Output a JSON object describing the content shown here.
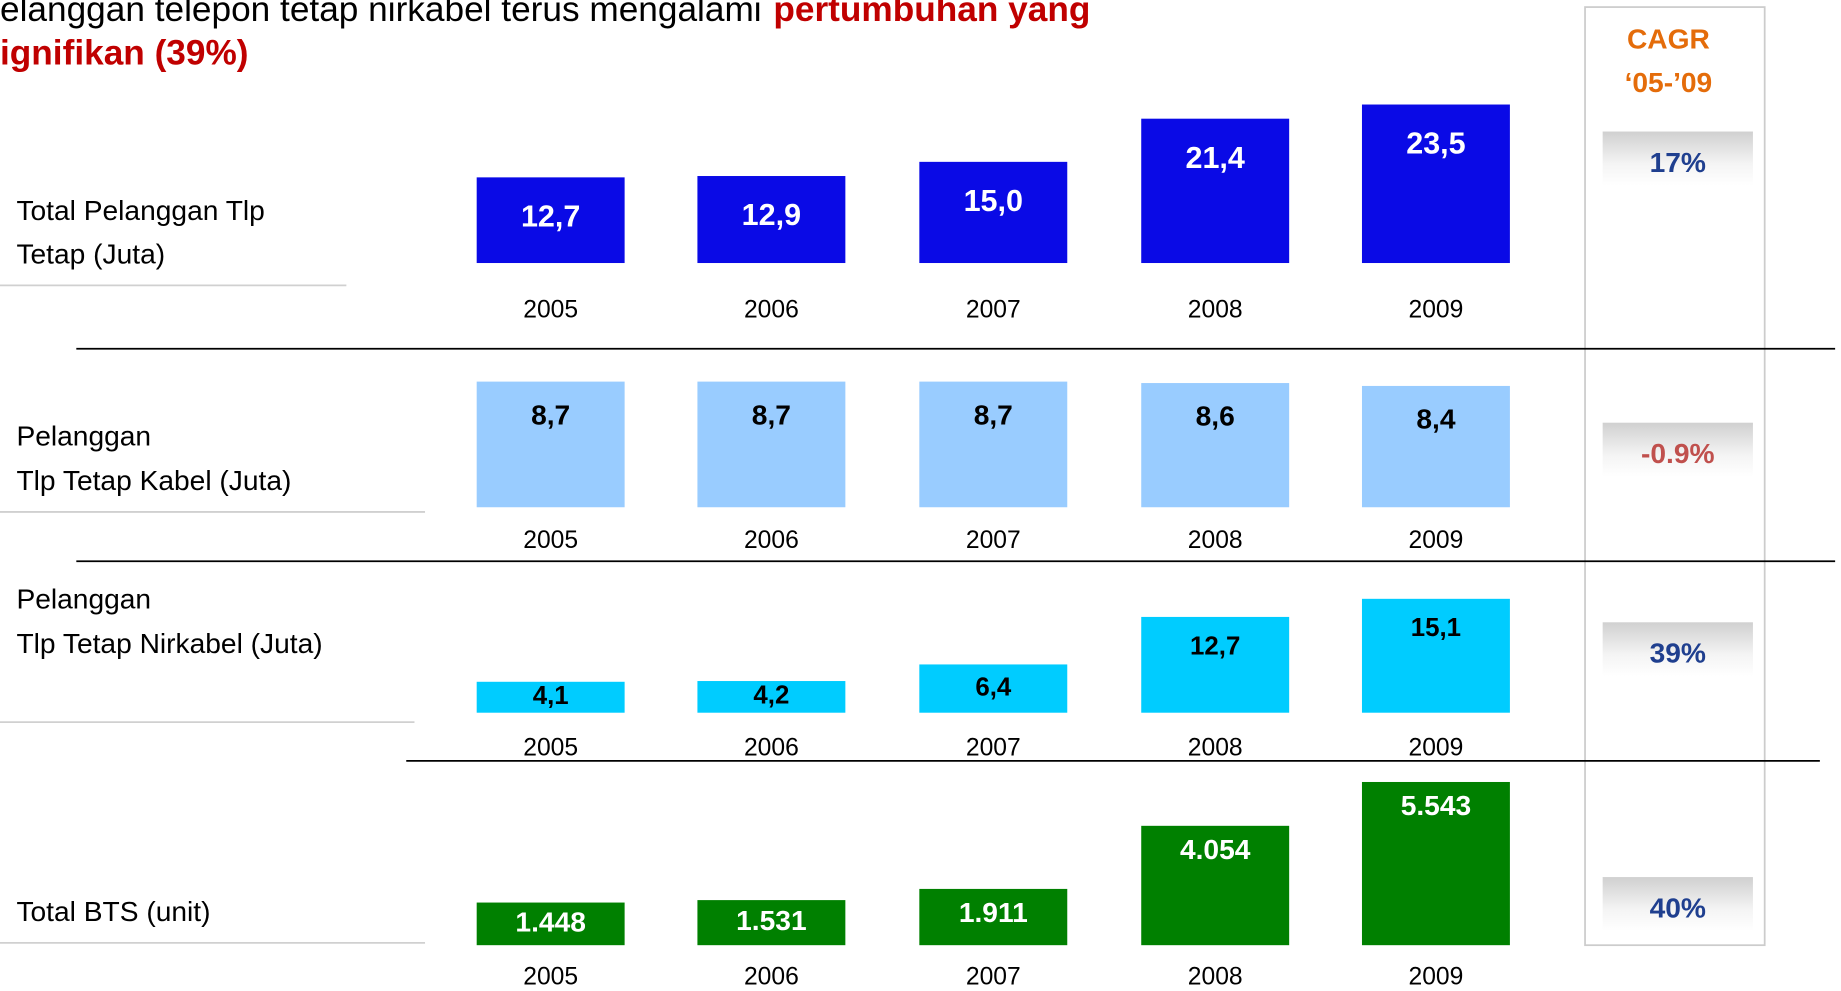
{
  "header": {
    "line1": "elanggan telepon tetap nirkabel terus mengalami",
    "line1_highlight": "pertumbuhan yang",
    "line2": "ignifikan (39%)"
  },
  "cagr_header": [
    "CAGR",
    "‘05-’09"
  ],
  "chart_data": [
    {
      "type": "bar",
      "title": [
        "Total Pelanggan Tlp",
        "Tetap (Juta)"
      ],
      "categories": [
        "2005",
        "2006",
        "2007",
        "2008",
        "2009"
      ],
      "values": [
        12.7,
        12.9,
        15.0,
        21.4,
        23.5
      ],
      "value_labels": [
        "12,7",
        "12,9",
        "15,0",
        "21,4",
        "23,5"
      ],
      "color": "#0a0ae6",
      "cagr": "17%",
      "cagr_color": "#1f3f8f"
    },
    {
      "type": "bar",
      "title": [
        "Pelanggan",
        "Tlp Tetap Kabel (Juta)"
      ],
      "categories": [
        "2005",
        "2006",
        "2007",
        "2008",
        "2009"
      ],
      "values": [
        8.7,
        8.7,
        8.7,
        8.6,
        8.4
      ],
      "value_labels": [
        "8,7",
        "8,7",
        "8,7",
        "8,6",
        "8,4"
      ],
      "color": "#99ccff",
      "cagr": "-0.9%",
      "cagr_color": "#c0504d"
    },
    {
      "type": "bar",
      "title": [
        "Pelanggan",
        "Tlp Tetap Nirkabel (Juta)"
      ],
      "categories": [
        "2005",
        "2006",
        "2007",
        "2008",
        "2009"
      ],
      "values": [
        4.1,
        4.2,
        6.4,
        12.7,
        15.1
      ],
      "value_labels": [
        "4,1",
        "4,2",
        "6,4",
        "12,7",
        "15,1"
      ],
      "color": "#00ccff",
      "cagr": "39%",
      "cagr_color": "#1f3f8f"
    },
    {
      "type": "bar",
      "title": [
        "Total BTS (unit)"
      ],
      "categories": [
        "2005",
        "2006",
        "2007",
        "2008",
        "2009"
      ],
      "values": [
        1448,
        1531,
        1911,
        4054,
        5543
      ],
      "value_labels": [
        "1.448",
        "1.531",
        "1.911",
        "4.054",
        "5.543"
      ],
      "color": "#008000",
      "cagr": "40%",
      "cagr_color": "#1f3f8f"
    }
  ]
}
